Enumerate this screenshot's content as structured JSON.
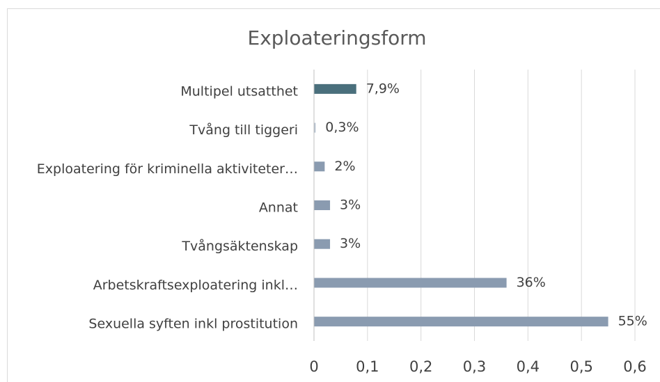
{
  "chart_data": {
    "type": "bar",
    "orientation": "horizontal",
    "title": "Exploateringsform",
    "categories": [
      "Multipel utsatthet",
      "Tvång till tiggeri",
      "Exploatering för kriminella aktiviteter…",
      "Annat",
      "Tvångsäktenskap",
      "Arbetskraftsexploatering inkl…",
      "Sexuella syften inkl prostitution"
    ],
    "values": [
      0.079,
      0.003,
      0.02,
      0.03,
      0.03,
      0.36,
      0.55
    ],
    "value_labels": [
      "7,9%",
      "0,3%",
      "2%",
      "3%",
      "3%",
      "36%",
      "55%"
    ],
    "colors": [
      "#4a6f7c",
      "#b4c0cf",
      "#8a9bb0",
      "#8a9bb0",
      "#8a9bb0",
      "#8a9bb0",
      "#8a9bb0"
    ],
    "xlim": [
      0,
      0.6
    ],
    "xticks": [
      0,
      {
        "value": 0.1,
        "label": "0,1"
      },
      {
        "value": 0.2,
        "label": "0,2"
      },
      {
        "value": 0.3,
        "label": "0,3"
      },
      {
        "value": 0.4,
        "label": "0,4"
      },
      {
        "value": 0.5,
        "label": "0,5"
      },
      {
        "value": 0.6,
        "label": "0,6"
      }
    ],
    "grid": true
  }
}
